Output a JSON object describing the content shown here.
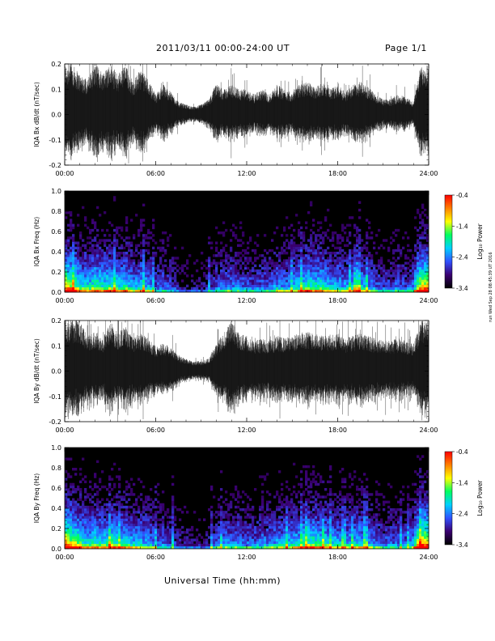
{
  "header": {
    "title": "2011/03/11   00:00-24:00 UT",
    "page": "Page 1/1"
  },
  "stamp": "run Wed Sep 28 08:45:39 UT 2016",
  "colorbar": {
    "label": "Log₁₀ Power",
    "ticks": [
      "-0.4",
      "-1.4",
      "-2.4",
      "-3.4"
    ],
    "colors": [
      "#000000",
      "#3a0070",
      "#3050ff",
      "#00d0ff",
      "#00ff60",
      "#ffff00",
      "#ff8000",
      "#ff0000"
    ]
  },
  "chart_data": [
    {
      "type": "line",
      "ylabel": "IQA Bx dB/dt (nT/sec)",
      "xlabel": "",
      "x_ticks": [
        "00:00",
        "06:00",
        "12:00",
        "18:00",
        "24:00"
      ],
      "y_ticks": [
        "0.2",
        "0.1",
        "0.0",
        "-0.1",
        "-0.2"
      ],
      "xlim": [
        0,
        24
      ],
      "ylim": [
        -0.2,
        0.2
      ],
      "series": [
        {
          "x": [
            0,
            0.5,
            1,
            1.5,
            2,
            2.5,
            3,
            3.5,
            4,
            4.5,
            5,
            5.5,
            6,
            6.5,
            7,
            7.5,
            8,
            8.5,
            9,
            9.5,
            10,
            10.5,
            11,
            11.5,
            12,
            12.5,
            13,
            13.5,
            14,
            14.5,
            15,
            15.5,
            16,
            16.5,
            17,
            17.5,
            18,
            18.5,
            19,
            19.5,
            20,
            20.5,
            21,
            21.5,
            22,
            22.5,
            23,
            23.5,
            24
          ],
          "envelope": [
            0.2,
            0.2,
            0.16,
            0.14,
            0.2,
            0.17,
            0.2,
            0.16,
            0.2,
            0.13,
            0.18,
            0.14,
            0.08,
            0.12,
            0.09,
            0.05,
            0.04,
            0.03,
            0.04,
            0.06,
            0.12,
            0.1,
            0.12,
            0.1,
            0.1,
            0.08,
            0.1,
            0.08,
            0.12,
            0.1,
            0.09,
            0.12,
            0.13,
            0.11,
            0.13,
            0.1,
            0.12,
            0.09,
            0.12,
            0.13,
            0.11,
            0.08,
            0.06,
            0.06,
            0.08,
            0.07,
            0.05,
            0.2,
            0.2
          ]
        }
      ]
    },
    {
      "type": "heatmap",
      "ylabel": "IQA Bx Freq (Hz)",
      "xlabel": "",
      "x_ticks": [
        "00:00",
        "06:00",
        "12:00",
        "18:00",
        "24:00"
      ],
      "y_ticks": [
        "1.0",
        "0.8",
        "0.6",
        "0.4",
        "0.2",
        "0.0"
      ],
      "xlim": [
        0,
        24
      ],
      "ylim": [
        0,
        1.0
      ],
      "colorbar_range": [
        -3.4,
        -0.4
      ],
      "activity": [
        0.9,
        0.8,
        0.6,
        0.55,
        0.7,
        0.6,
        0.65,
        0.55,
        0.6,
        0.45,
        0.55,
        0.45,
        0.3,
        0.35,
        0.3,
        0.2,
        0.15,
        0.15,
        0.15,
        0.2,
        0.35,
        0.35,
        0.4,
        0.35,
        0.35,
        0.3,
        0.35,
        0.35,
        0.45,
        0.4,
        0.45,
        0.55,
        0.65,
        0.6,
        0.6,
        0.5,
        0.5,
        0.45,
        0.5,
        0.55,
        0.45,
        0.35,
        0.3,
        0.3,
        0.35,
        0.3,
        0.35,
        0.9,
        0.9
      ]
    },
    {
      "type": "line",
      "ylabel": "IQA By dB/dt (nT/sec)",
      "xlabel": "",
      "x_ticks": [
        "00:00",
        "06:00",
        "12:00",
        "18:00",
        "24:00"
      ],
      "y_ticks": [
        "0.2",
        "0.1",
        "0.0",
        "-0.1",
        "-0.2"
      ],
      "xlim": [
        0,
        24
      ],
      "ylim": [
        -0.2,
        0.2
      ],
      "series": [
        {
          "x": [
            0,
            0.5,
            1,
            1.5,
            2,
            2.5,
            3,
            3.5,
            4,
            4.5,
            5,
            5.5,
            6,
            6.5,
            7,
            7.5,
            8,
            8.5,
            9,
            9.5,
            10,
            10.5,
            11,
            11.5,
            12,
            12.5,
            13,
            13.5,
            14,
            14.5,
            15,
            15.5,
            16,
            16.5,
            17,
            17.5,
            18,
            18.5,
            19,
            19.5,
            20,
            20.5,
            21,
            21.5,
            22,
            22.5,
            23,
            23.5,
            24
          ],
          "envelope": [
            0.2,
            0.2,
            0.2,
            0.14,
            0.16,
            0.13,
            0.2,
            0.15,
            0.18,
            0.13,
            0.15,
            0.13,
            0.1,
            0.11,
            0.1,
            0.06,
            0.05,
            0.04,
            0.04,
            0.05,
            0.11,
            0.15,
            0.2,
            0.15,
            0.14,
            0.12,
            0.13,
            0.12,
            0.14,
            0.13,
            0.14,
            0.15,
            0.16,
            0.15,
            0.14,
            0.14,
            0.15,
            0.13,
            0.14,
            0.15,
            0.14,
            0.13,
            0.12,
            0.12,
            0.13,
            0.12,
            0.11,
            0.2,
            0.2
          ]
        }
      ]
    },
    {
      "type": "heatmap",
      "ylabel": "IQA By Freq (Hz)",
      "xlabel": "Universal Time (hh:mm)",
      "x_ticks": [
        "00:00",
        "06:00",
        "12:00",
        "18:00",
        "24:00"
      ],
      "y_ticks": [
        "1.0",
        "0.8",
        "0.6",
        "0.4",
        "0.2",
        "0.0"
      ],
      "xlim": [
        0,
        24
      ],
      "ylim": [
        0,
        1.0
      ],
      "colorbar_range": [
        -3.4,
        -0.4
      ],
      "activity": [
        0.95,
        0.8,
        0.7,
        0.55,
        0.65,
        0.55,
        0.7,
        0.55,
        0.6,
        0.5,
        0.5,
        0.45,
        0.35,
        0.35,
        0.3,
        0.2,
        0.2,
        0.15,
        0.15,
        0.2,
        0.35,
        0.4,
        0.4,
        0.4,
        0.35,
        0.35,
        0.4,
        0.4,
        0.45,
        0.45,
        0.5,
        0.55,
        0.65,
        0.65,
        0.6,
        0.55,
        0.5,
        0.45,
        0.5,
        0.55,
        0.45,
        0.4,
        0.35,
        0.35,
        0.35,
        0.35,
        0.4,
        0.95,
        0.95
      ]
    }
  ]
}
